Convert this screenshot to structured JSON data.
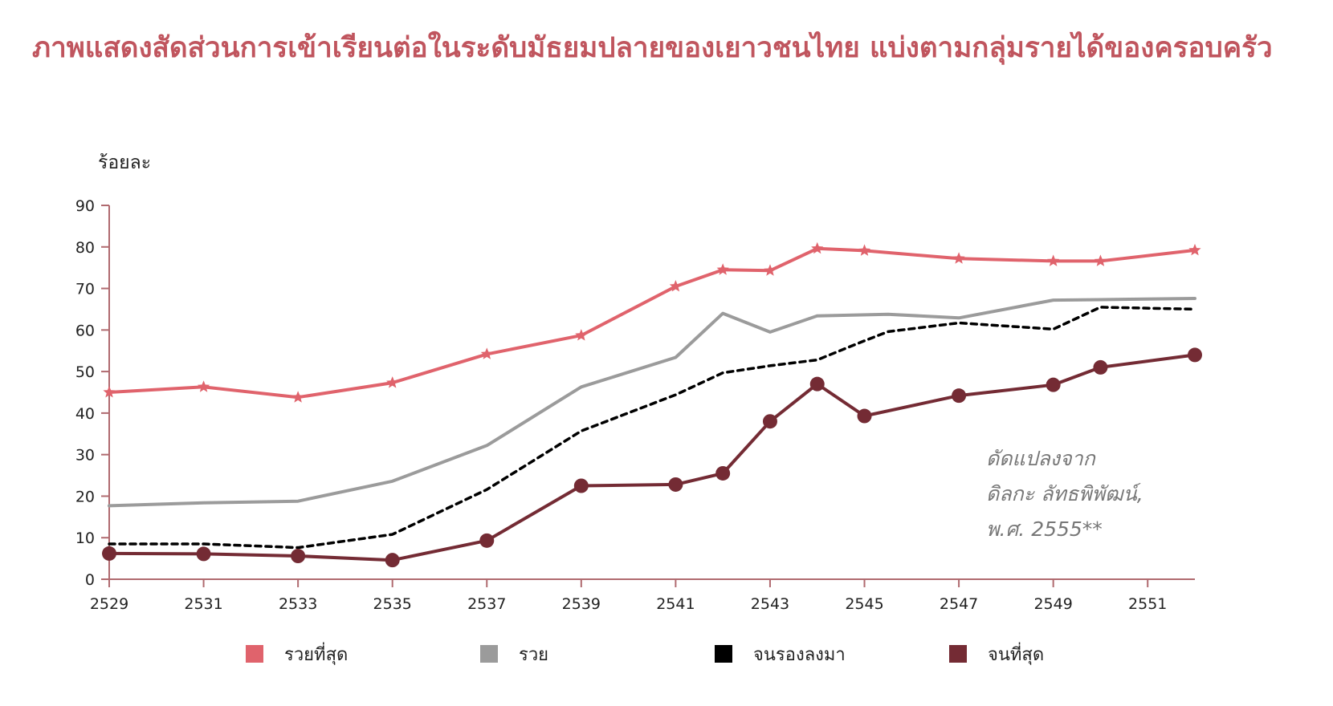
{
  "title": "ภาพแสดงสัดส่วนการเข้าเรียนต่อในระดับมัธยมปลายของเยาวชนไทย  แบ่งตามกลุ่มรายได้ของครอบครัว",
  "note": [
    "ดัดแปลงจาก",
    "ดิลกะ ลัทธพิพัฒน์,",
    "พ.ศ. 2555**"
  ],
  "chart_data": {
    "type": "line",
    "title": "ภาพแสดงสัดส่วนการเข้าเรียนต่อในระดับมัธยมปลายของเยาวชนไทย  แบ่งตามกลุ่มรายได้ของครอบครัว",
    "xlabel": "",
    "ylabel": "ร้อยละ",
    "xlim": [
      2529,
      2552
    ],
    "ylim": [
      0,
      90
    ],
    "x_ticks": [
      "2529",
      "2531",
      "2533",
      "2535",
      "2537",
      "2539",
      "2541",
      "2543",
      "2545",
      "2547",
      "2549",
      "2551"
    ],
    "y_ticks": [
      "0",
      "10",
      "20",
      "30",
      "40",
      "50",
      "60",
      "70",
      "80",
      "90"
    ],
    "grid": false,
    "legend_position": "bottom",
    "series": [
      {
        "name": "รวยที่สุด",
        "color": "#e0636c",
        "marker": "star",
        "dash": "solid",
        "x": [
          2529,
          2531,
          2533,
          2535,
          2537,
          2539,
          2541,
          2542,
          2543,
          2544,
          2545,
          2547,
          2549,
          2550,
          2552
        ],
        "y": [
          45,
          46.3,
          43.8,
          47.3,
          54.2,
          58.7,
          70.5,
          74.5,
          74.3,
          79.6,
          79.1,
          77.2,
          76.6,
          76.6,
          79.2
        ]
      },
      {
        "name": "รวย",
        "color": "#9b9b9b",
        "marker": "none",
        "dash": "solid",
        "x": [
          2529,
          2531,
          2533,
          2535,
          2537,
          2539,
          2541,
          2542,
          2543,
          2544,
          2545.5,
          2547,
          2549,
          2550,
          2552
        ],
        "y": [
          17.7,
          18.4,
          18.8,
          23.6,
          32.2,
          46.3,
          53.4,
          64,
          59.5,
          63.4,
          63.8,
          62.9,
          67.2,
          67.3,
          67.6
        ]
      },
      {
        "name": "จนรองลงมา",
        "color": "#000000",
        "marker": "none",
        "dash": "dashed",
        "x": [
          2529,
          2531,
          2533,
          2535,
          2537,
          2539,
          2541,
          2542,
          2543,
          2544,
          2545,
          2545.5,
          2547,
          2549,
          2550,
          2552
        ],
        "y": [
          8.5,
          8.5,
          7.6,
          10.8,
          21.6,
          35.7,
          44.4,
          49.7,
          51.4,
          52.8,
          57.4,
          59.6,
          61.7,
          60.2,
          65.5,
          65
        ]
      },
      {
        "name": "จนที่สุด",
        "color": "#742b34",
        "marker": "circle",
        "dash": "solid",
        "x": [
          2529,
          2531,
          2533,
          2535,
          2537,
          2539,
          2541,
          2542,
          2543,
          2544,
          2545,
          2547,
          2549,
          2550,
          2552
        ],
        "y": [
          6.2,
          6.1,
          5.6,
          4.6,
          9.3,
          22.5,
          22.8,
          25.5,
          38,
          47,
          39.3,
          44.2,
          46.8,
          51,
          54
        ]
      }
    ]
  }
}
